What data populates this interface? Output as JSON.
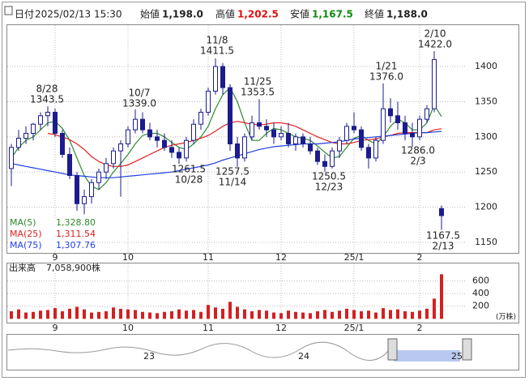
{
  "header": {
    "date_label": "日付",
    "date": "2025/02/13 15:30",
    "open_label": "始値",
    "open": "1,198.0",
    "high_label": "高値",
    "high": "1,202.5",
    "low_label": "安値",
    "low": "1,167.5",
    "close_label": "終値",
    "close": "1,188.0"
  },
  "chart_data": [
    {
      "type": "candlestick",
      "x": [
        null,
        null,
        null,
        null,
        null,
        null,
        "9",
        null,
        null,
        null,
        null,
        null,
        null,
        null,
        null,
        null,
        "10",
        null,
        null,
        null,
        null,
        null,
        null,
        null,
        null,
        null,
        null,
        "11",
        null,
        null,
        null,
        null,
        null,
        null,
        null,
        null,
        null,
        "12",
        null,
        null,
        null,
        null,
        null,
        null,
        null,
        null,
        null,
        "25/1",
        null,
        null,
        null,
        null,
        null,
        null,
        null,
        null,
        "2",
        null,
        null,
        null
      ],
      "open": [
        1255,
        1285,
        1298,
        1305,
        1318,
        1330,
        1335,
        1305,
        1275,
        1245,
        1205,
        1215,
        1235,
        1250,
        1262,
        1280,
        1290,
        1310,
        1325,
        1310,
        1300,
        1295,
        1285,
        1278,
        1270,
        1295,
        1318,
        1335,
        1365,
        1400,
        1370,
        1290,
        1270,
        1300,
        1320,
        1315,
        1310,
        1300,
        1305,
        1290,
        1300,
        1290,
        1280,
        1265,
        1258,
        1280,
        1295,
        1315,
        1310,
        1285,
        1270,
        1295,
        1340,
        1330,
        1320,
        1305,
        1300,
        1325,
        1340,
        1198
      ],
      "high": [
        1290,
        1310,
        1315,
        1320,
        1335,
        1343.5,
        1340,
        1310,
        1285,
        1250,
        1225,
        1240,
        1255,
        1270,
        1285,
        1295,
        1315,
        1339,
        1335,
        1320,
        1310,
        1305,
        1295,
        1285,
        1300,
        1325,
        1340,
        1370,
        1411.5,
        1405,
        1375,
        1300,
        1305,
        1330,
        1353.5,
        1325,
        1320,
        1315,
        1320,
        1305,
        1305,
        1300,
        1285,
        1275,
        1285,
        1300,
        1320,
        1335,
        1315,
        1290,
        1300,
        1376,
        1355,
        1350,
        1330,
        1320,
        1330,
        1345,
        1422,
        1202.5
      ],
      "low": [
        1230,
        1280,
        1290,
        1295,
        1310,
        1315,
        1300,
        1270,
        1240,
        1195,
        1190,
        1205,
        1225,
        1240,
        1255,
        1215,
        1285,
        1305,
        1305,
        1295,
        1285,
        1280,
        1270,
        1261.5,
        1265,
        1290,
        1310,
        1330,
        1360,
        1360,
        1280,
        1257.5,
        1265,
        1295,
        1310,
        1300,
        1290,
        1295,
        1285,
        1280,
        1285,
        1275,
        1260,
        1250.5,
        1255,
        1270,
        1290,
        1305,
        1280,
        1255,
        1265,
        1290,
        1320,
        1310,
        1295,
        1286,
        1295,
        1320,
        1335,
        1167.5
      ],
      "close": [
        1285,
        1298,
        1305,
        1318,
        1330,
        1335,
        1305,
        1275,
        1245,
        1205,
        1215,
        1235,
        1250,
        1262,
        1280,
        1290,
        1310,
        1325,
        1310,
        1300,
        1295,
        1285,
        1278,
        1270,
        1295,
        1318,
        1335,
        1365,
        1400,
        1370,
        1290,
        1270,
        1300,
        1320,
        1315,
        1310,
        1300,
        1305,
        1290,
        1300,
        1290,
        1280,
        1265,
        1258,
        1280,
        1295,
        1315,
        1310,
        1285,
        1270,
        1295,
        1340,
        1330,
        1320,
        1305,
        1300,
        1325,
        1340,
        1410,
        1188
      ],
      "up_color": "#ffffff",
      "down_color": "#1c1c8e",
      "outline_color": "#1c1c8e",
      "ylim": [
        1135,
        1460
      ],
      "yticks": [
        1150,
        1200,
        1250,
        1300,
        1350,
        1400
      ],
      "grid": true,
      "series": [
        {
          "name": "MA(5)",
          "legend_label": "1,328.80",
          "color": "#2e8b2e",
          "values": [
            1270,
            1285,
            1295,
            1300,
            1310,
            1320,
            1322,
            1312,
            1295,
            1270,
            1245,
            1230,
            1225,
            1235,
            1250,
            1262,
            1275,
            1290,
            1302,
            1305,
            1305,
            1300,
            1292,
            1285,
            1282,
            1290,
            1300,
            1315,
            1340,
            1360,
            1370,
            1350,
            1320,
            1295,
            1295,
            1305,
            1312,
            1310,
            1305,
            1300,
            1298,
            1295,
            1287,
            1278,
            1270,
            1272,
            1285,
            1298,
            1302,
            1295,
            1290,
            1300,
            1315,
            1325,
            1320,
            1310,
            1310,
            1320,
            1345,
            1328.8
          ]
        },
        {
          "name": "MA(25)",
          "legend_label": "1,311.54",
          "color": "#e02020",
          "values": [
            null,
            null,
            null,
            null,
            null,
            1305,
            1303,
            1300,
            1296,
            1290,
            1282,
            1272,
            1265,
            1260,
            1258,
            1258,
            1260,
            1265,
            1270,
            1275,
            1280,
            1285,
            1288,
            1290,
            1292,
            1295,
            1298,
            1302,
            1308,
            1315,
            1320,
            1322,
            1320,
            1318,
            1317,
            1318,
            1320,
            1320,
            1318,
            1315,
            1310,
            1305,
            1300,
            1296,
            1292,
            1290,
            1290,
            1292,
            1295,
            1296,
            1297,
            1300,
            1302,
            1305,
            1306,
            1306,
            1306,
            1306,
            1310,
            1311.54
          ]
        },
        {
          "name": "MA(75)",
          "legend_label": "1,307.76",
          "color": "#2040e0",
          "values": [
            1262,
            1260,
            1258,
            1256,
            1254,
            1252,
            1250,
            1248,
            1246,
            1245,
            1244,
            1243,
            1242,
            1242,
            1242,
            1243,
            1244,
            1245,
            1246,
            1247,
            1248,
            1249,
            1250,
            1252,
            1254,
            1256,
            1258,
            1260,
            1263,
            1267,
            1270,
            1273,
            1276,
            1279,
            1282,
            1284,
            1286,
            1287,
            1288,
            1289,
            1290,
            1290,
            1290,
            1291,
            1292,
            1293,
            1295,
            1297,
            1298,
            1299,
            1300,
            1301,
            1302,
            1303,
            1304,
            1305,
            1306,
            1306,
            1307,
            1307.76
          ]
        }
      ],
      "annotations": [
        [
          "8/28",
          "1343.5"
        ],
        [
          "10/7",
          "1339.0"
        ],
        [
          "11/8",
          "1411.5"
        ],
        [
          "11/25",
          "1353.5"
        ],
        [
          "1/21",
          "1376.0"
        ],
        [
          "2/10",
          "1422.0"
        ],
        [
          "1261.5",
          "10/28"
        ],
        [
          "1257.5",
          "11/14"
        ],
        [
          "1250.5",
          "12/23"
        ],
        [
          "1286.0",
          "2/3"
        ],
        [
          "1167.5",
          "2/13"
        ]
      ]
    },
    {
      "type": "bar",
      "title": "出来高",
      "title_value": "7,058,900株",
      "unit": "(万株)",
      "color": "#d42020",
      "values": [
        120,
        150,
        100,
        110,
        130,
        140,
        170,
        120,
        160,
        190,
        150,
        100,
        110,
        120,
        180,
        160,
        150,
        140,
        110,
        100,
        90,
        110,
        120,
        150,
        130,
        140,
        110,
        220,
        180,
        160,
        270,
        190,
        150,
        120,
        140,
        130,
        100,
        90,
        130,
        110,
        100,
        90,
        120,
        140,
        110,
        130,
        160,
        140,
        120,
        130,
        100,
        170,
        140,
        150,
        120,
        110,
        130,
        160,
        320,
        705.89
      ],
      "ylim": [
        -60,
        890
      ],
      "yticks": [
        200,
        400,
        600
      ],
      "grid": true
    }
  ],
  "navigator": {
    "labels": [
      "23",
      "24",
      "25"
    ]
  }
}
